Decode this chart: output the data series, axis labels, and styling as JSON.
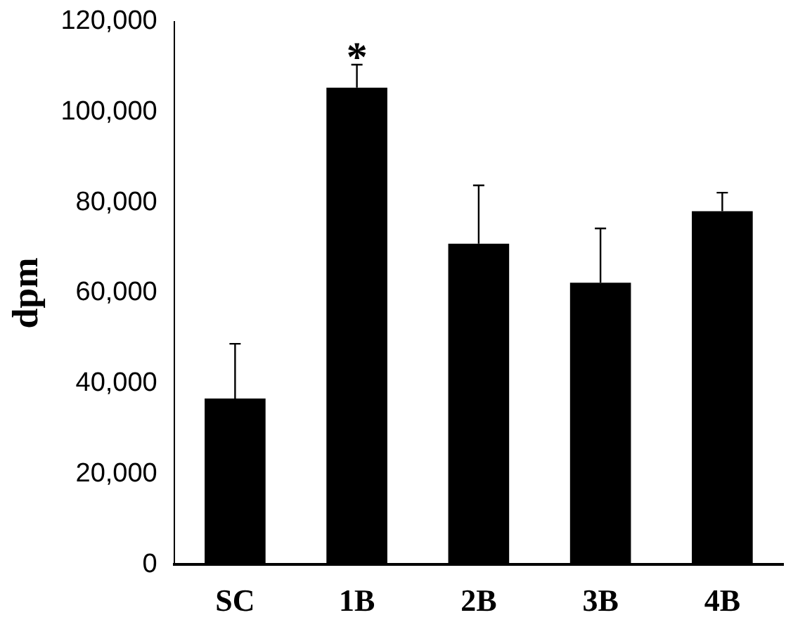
{
  "chart_data": {
    "type": "bar",
    "ylabel": "dpm",
    "categories": [
      "SC",
      "1B",
      "2B",
      "3B",
      "4B"
    ],
    "values": [
      36700,
      105400,
      70900,
      62300,
      78100
    ],
    "color": "#000000",
    "errors": [
      [
        36700,
        48800
      ],
      [
        105400,
        110500
      ],
      [
        70900,
        83800
      ],
      [
        62300,
        74300
      ],
      [
        78100,
        82200
      ]
    ],
    "ylim": [
      0,
      120000
    ],
    "yticks": [
      {
        "value": 0,
        "label": "0"
      },
      {
        "value": 20000,
        "label": "20,000"
      },
      {
        "value": 40000,
        "label": "40,000"
      },
      {
        "value": 60000,
        "label": "60,000"
      },
      {
        "value": 80000,
        "label": "80,000"
      },
      {
        "value": 100000,
        "label": "100,000"
      },
      {
        "value": 120000,
        "label": "120,000"
      }
    ],
    "grid": false,
    "legend": false,
    "annotations": [
      {
        "text": "*",
        "x": "1B",
        "y": 110500
      }
    ]
  }
}
